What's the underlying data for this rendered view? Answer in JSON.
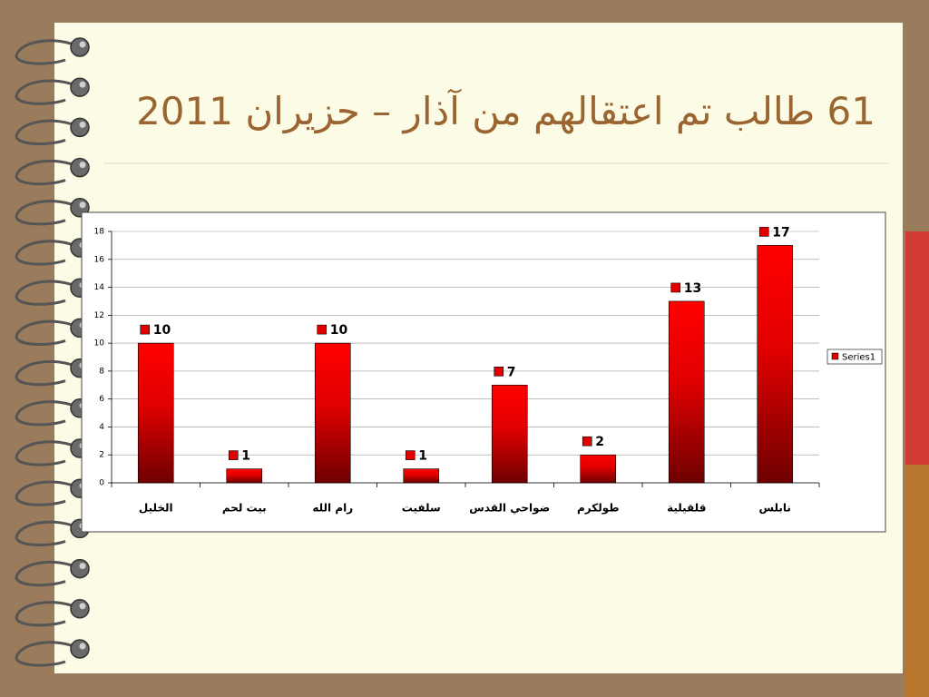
{
  "chart_data": {
    "type": "bar",
    "title": "61 طالب تم اعتقالهم من آذار – حزيران 2011",
    "categories": [
      "الخليل",
      "بيت لحم",
      "رام الله",
      "سلفيت",
      "ضواحي القدس",
      "طولكرم",
      "قلقيلية",
      "نابلس"
    ],
    "series": [
      {
        "name": "Series1",
        "color": "#e00000",
        "values": [
          10,
          1,
          10,
          1,
          7,
          2,
          13,
          17
        ]
      }
    ],
    "ylim": [
      0,
      18
    ],
    "yticks": [
      0,
      2,
      4,
      6,
      8,
      10,
      12,
      14,
      16,
      18
    ],
    "grid": true,
    "legend": "right",
    "data_labels": true
  }
}
